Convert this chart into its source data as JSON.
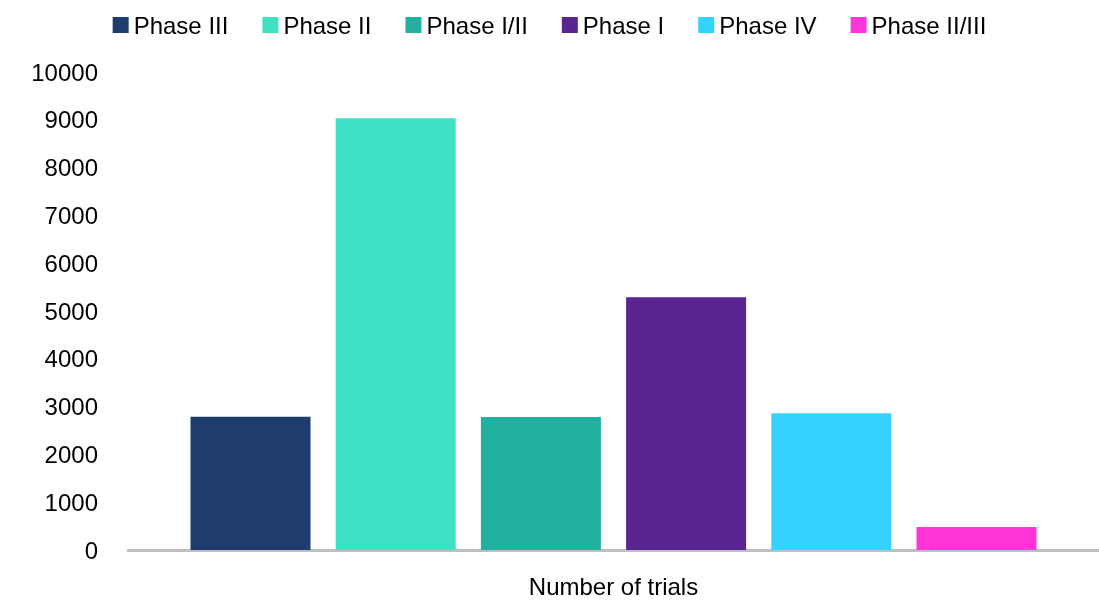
{
  "chart_data": {
    "type": "bar",
    "categories": [
      "Number of trials"
    ],
    "series": [
      {
        "name": "Phase III",
        "color": "#1f3c6e",
        "values": [
          2790
        ]
      },
      {
        "name": "Phase II",
        "color": "#40e0c4",
        "values": [
          9030
        ]
      },
      {
        "name": "Phase I/II",
        "color": "#22b0a0",
        "values": [
          2780
        ]
      },
      {
        "name": "Phase I",
        "color": "#5a2590",
        "values": [
          5290
        ]
      },
      {
        "name": "Phase IV",
        "color": "#35d2ff",
        "values": [
          2860
        ]
      },
      {
        "name": "Phase II/III",
        "color": "#ff35d8",
        "values": [
          480
        ]
      }
    ],
    "ylim": [
      0,
      10000
    ],
    "yticks": [
      0,
      1000,
      2000,
      3000,
      4000,
      5000,
      6000,
      7000,
      8000,
      9000,
      10000
    ],
    "grid": false,
    "legend": "top"
  }
}
